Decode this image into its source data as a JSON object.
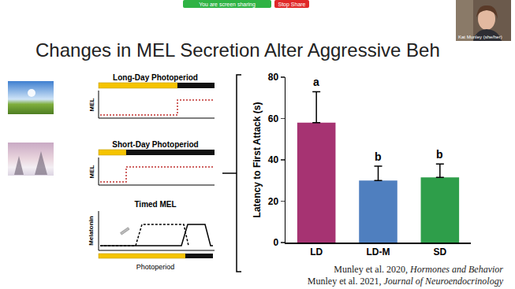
{
  "zoom_bar": {
    "sharing": "You are screen sharing",
    "stop": "Stop Share"
  },
  "participant": "Kat Munley (she/her)",
  "title": "Changes in MEL Secretion Alter Aggressive Beh",
  "diagrams": [
    {
      "title": "Long-Day Photoperiod",
      "axis_label": "MEL"
    },
    {
      "title": "Short-Day Photoperiod",
      "axis_label": "MEL"
    },
    {
      "title": "Timed MEL",
      "axis_label": "Melatonin",
      "x_label": "Photoperiod"
    }
  ],
  "chart_data": {
    "type": "bar",
    "categories": [
      "LD",
      "LD-M",
      "SD"
    ],
    "values": [
      58,
      30,
      31.5
    ],
    "errors": [
      15,
      7,
      6.5
    ],
    "letters": [
      "a",
      "b",
      "b"
    ],
    "colors": [
      "#a63372",
      "#4f7fbf",
      "#2e9e4a"
    ],
    "y_label": "Latency to First Attack (s)",
    "ylim": [
      0,
      80
    ],
    "yticks": [
      0,
      20,
      40,
      60,
      80
    ],
    "grid": false
  },
  "citations": [
    {
      "text": "Munley et al. 2020, ",
      "journal": "Hormones and Behavior"
    },
    {
      "text": "Munley et al. 2021, ",
      "journal": "Journal of Neuroendocrinology"
    }
  ]
}
